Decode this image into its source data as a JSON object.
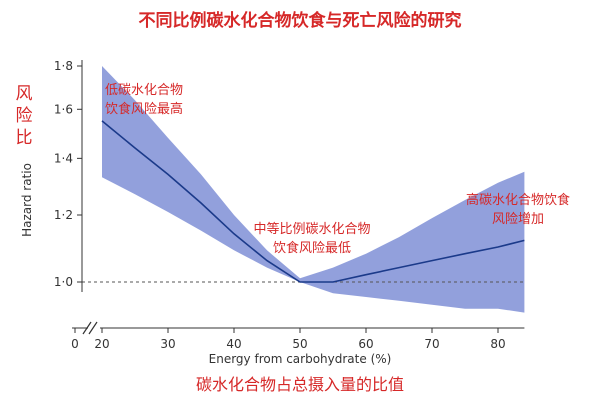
{
  "chart_data": {
    "type": "line",
    "title": "不同比例碳水化合物饮食与死亡风险的研究",
    "xlabel": "Energy from carbohydrate (%)",
    "ylabel": "Hazard ratio",
    "ylabel_cn": "风险比",
    "xlabel_cn": "碳水化合物占总摄入量的比值",
    "x_ticks": [
      0,
      20,
      30,
      40,
      50,
      60,
      70,
      80
    ],
    "x_tick_labels": [
      "0",
      "20",
      "30",
      "40",
      "50",
      "60",
      "70",
      "80"
    ],
    "y_ticks": [
      1.0,
      1.2,
      1.4,
      1.6,
      1.8
    ],
    "y_tick_labels": [
      "1·0",
      "1·2",
      "1·4",
      "1·6",
      "1·8"
    ],
    "xlim": [
      20,
      84
    ],
    "ylim": [
      1.0,
      1.8
    ],
    "log_y": true,
    "grid": false,
    "axis_break": true,
    "reference_line": 1.0,
    "series": [
      {
        "x": [
          20,
          25,
          30,
          35,
          40,
          45,
          50,
          55,
          60,
          65,
          70,
          75,
          80,
          84
        ],
        "values": [
          1.55,
          1.44,
          1.34,
          1.24,
          1.14,
          1.06,
          1.0,
          1.0,
          1.02,
          1.04,
          1.06,
          1.08,
          1.1,
          1.12
        ],
        "lower": [
          1.33,
          1.27,
          1.21,
          1.15,
          1.09,
          1.04,
          1.0,
          0.97,
          0.96,
          0.95,
          0.94,
          0.93,
          0.93,
          0.92
        ],
        "upper": [
          1.8,
          1.64,
          1.48,
          1.34,
          1.2,
          1.09,
          1.01,
          1.04,
          1.08,
          1.13,
          1.19,
          1.25,
          1.31,
          1.35
        ]
      }
    ],
    "annotations": [
      {
        "id": "low",
        "lines": [
          "低碳水化合物",
          "饮食风险最高"
        ]
      },
      {
        "id": "mid",
        "lines": [
          "中等比例碳水化合物",
          "饮食风险最低"
        ]
      },
      {
        "id": "high",
        "lines": [
          "高碳水化合物饮食",
          "风险增加"
        ]
      }
    ],
    "colors": {
      "band": "#7f8fd6",
      "line": "#1b3a8a",
      "reference": "#555555",
      "axis": "#333333",
      "cn_text": "#d62828"
    }
  }
}
